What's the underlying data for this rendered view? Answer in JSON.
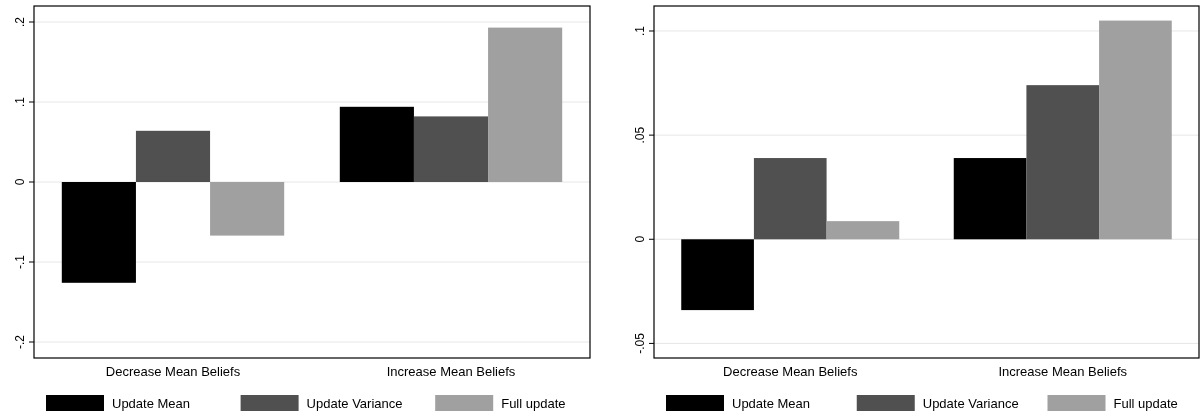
{
  "chart_data": [
    {
      "type": "bar",
      "categories": [
        "Decrease Mean Beliefs",
        "Increase Mean Beliefs"
      ],
      "series": [
        {
          "name": "Update Mean",
          "color": "#000000",
          "values": [
            -0.126,
            0.094
          ]
        },
        {
          "name": "Update Variance",
          "color": "#505050",
          "values": [
            0.064,
            0.082
          ]
        },
        {
          "name": "Full update",
          "color": "#a0a0a0",
          "values": [
            -0.067,
            0.193
          ]
        }
      ],
      "ylim": [
        -0.22,
        0.22
      ],
      "yticks": [
        {
          "value": -0.2,
          "label": "-.2"
        },
        {
          "value": -0.1,
          "label": "-.1"
        },
        0,
        {
          "value": 0.1,
          "label": ".1"
        },
        {
          "value": 0.2,
          "label": ".2"
        }
      ],
      "grid": "y",
      "legend": "bottom"
    },
    {
      "type": "bar",
      "categories": [
        "Decrease Mean Beliefs",
        "Increase Mean Beliefs"
      ],
      "series": [
        {
          "name": "Update Mean",
          "color": "#000000",
          "values": [
            -0.034,
            0.039
          ]
        },
        {
          "name": "Update Variance",
          "color": "#505050",
          "values": [
            0.039,
            0.074
          ]
        },
        {
          "name": "Full update",
          "color": "#a0a0a0",
          "values": [
            0.0087,
            0.105
          ]
        }
      ],
      "ylim": [
        -0.057,
        0.112
      ],
      "yticks": [
        {
          "value": -0.05,
          "label": "-.05"
        },
        0,
        {
          "value": 0.05,
          "label": ".05"
        },
        {
          "value": 0.1,
          "label": ".1"
        }
      ],
      "grid": "y",
      "legend": "bottom"
    }
  ]
}
